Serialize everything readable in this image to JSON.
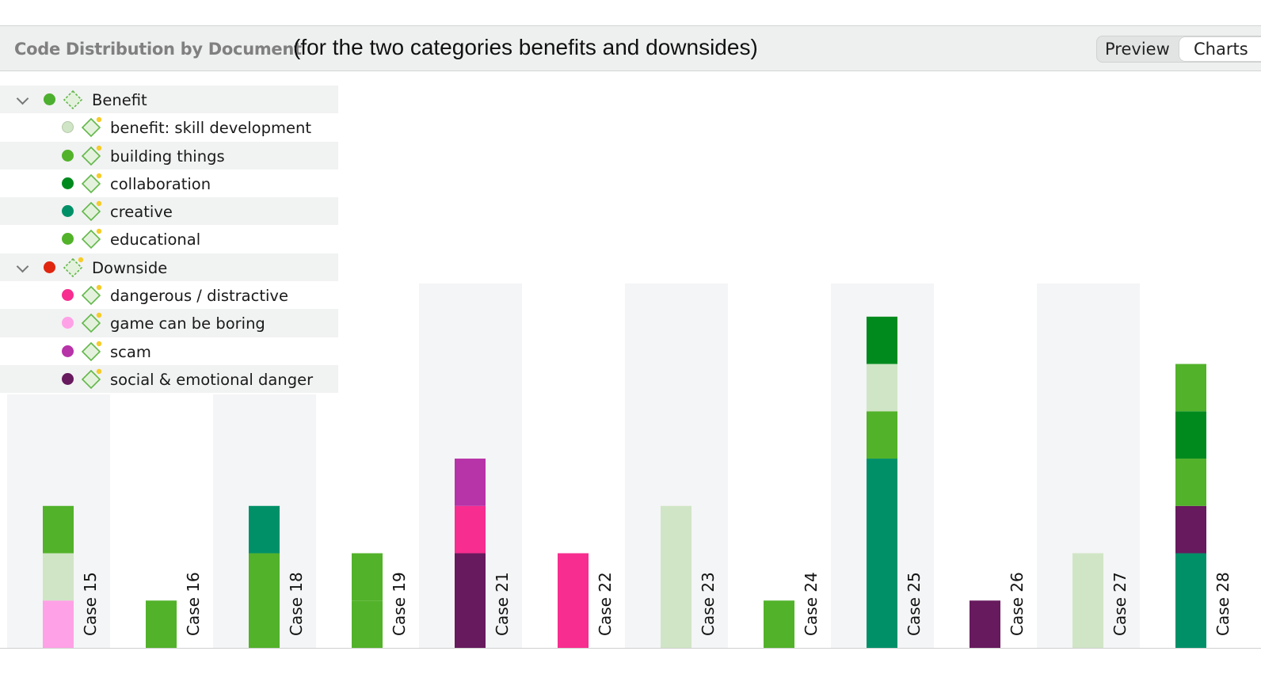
{
  "header": {
    "title": "Code Distribution by Document",
    "subtitle": "(for the two categories benefits and downsides)",
    "tabs": [
      {
        "label": "Preview"
      },
      {
        "label": "Charts"
      }
    ]
  },
  "codes": [
    {
      "label": "Benefit",
      "color": "#4caf2f",
      "level": 0,
      "expandable": true
    },
    {
      "label": "benefit: skill development",
      "color": "#d0e5c5",
      "level": 1
    },
    {
      "label": "building things",
      "color": "#52b22a",
      "level": 1
    },
    {
      "label": "collaboration",
      "color": "#008a1e",
      "level": 1
    },
    {
      "label": "creative",
      "color": "#009068",
      "level": 1
    },
    {
      "label": "educational",
      "color": "#52b22a",
      "level": 1
    },
    {
      "label": "Downside",
      "color": "#e0260f",
      "level": 0,
      "expandable": true
    },
    {
      "label": "dangerous / distractive",
      "color": "#f72d8f",
      "level": 1
    },
    {
      "label": "game can be boring",
      "color": "#ffa1e6",
      "level": 1
    },
    {
      "label": "scam",
      "color": "#b733a8",
      "level": 1
    },
    {
      "label": "social & emotional danger",
      "color": "#671a5d",
      "level": 1
    }
  ],
  "chart_data": {
    "type": "bar",
    "stacked": true,
    "categories": [
      "Case 15",
      "Case 16",
      "Case 18",
      "Case 19",
      "Case 21",
      "Case 22",
      "Case 23",
      "Case 24",
      "Case 25",
      "Case 26",
      "Case 27",
      "Case 28"
    ],
    "stacks": [
      [
        {
          "code": "game can be boring",
          "value": 1
        },
        {
          "code": "benefit: skill development",
          "value": 1
        },
        {
          "code": "building things",
          "value": 1
        }
      ],
      [
        {
          "code": "building things",
          "value": 1
        }
      ],
      [
        {
          "code": "building things",
          "value": 2
        },
        {
          "code": "creative",
          "value": 1
        }
      ],
      [
        {
          "code": "building things",
          "value": 1
        },
        {
          "code": "educational",
          "value": 1
        }
      ],
      [
        {
          "code": "social & emotional danger",
          "value": 2
        },
        {
          "code": "dangerous / distractive",
          "value": 1
        },
        {
          "code": "scam",
          "value": 1
        }
      ],
      [
        {
          "code": "dangerous / distractive",
          "value": 2
        }
      ],
      [
        {
          "code": "benefit: skill development",
          "value": 3
        }
      ],
      [
        {
          "code": "building things",
          "value": 1
        }
      ],
      [
        {
          "code": "creative",
          "value": 4
        },
        {
          "code": "building things",
          "value": 1
        },
        {
          "code": "benefit: skill development",
          "value": 1
        },
        {
          "code": "collaboration",
          "value": 1
        }
      ],
      [
        {
          "code": "social & emotional danger",
          "value": 1
        }
      ],
      [
        {
          "code": "benefit: skill development",
          "value": 2
        }
      ],
      [
        {
          "code": "creative",
          "value": 2
        },
        {
          "code": "social & emotional danger",
          "value": 1
        },
        {
          "code": "building things",
          "value": 1
        },
        {
          "code": "collaboration",
          "value": 1
        },
        {
          "code": "educational",
          "value": 1
        }
      ]
    ],
    "ylim": [
      0,
      7.7
    ],
    "grid": false
  }
}
